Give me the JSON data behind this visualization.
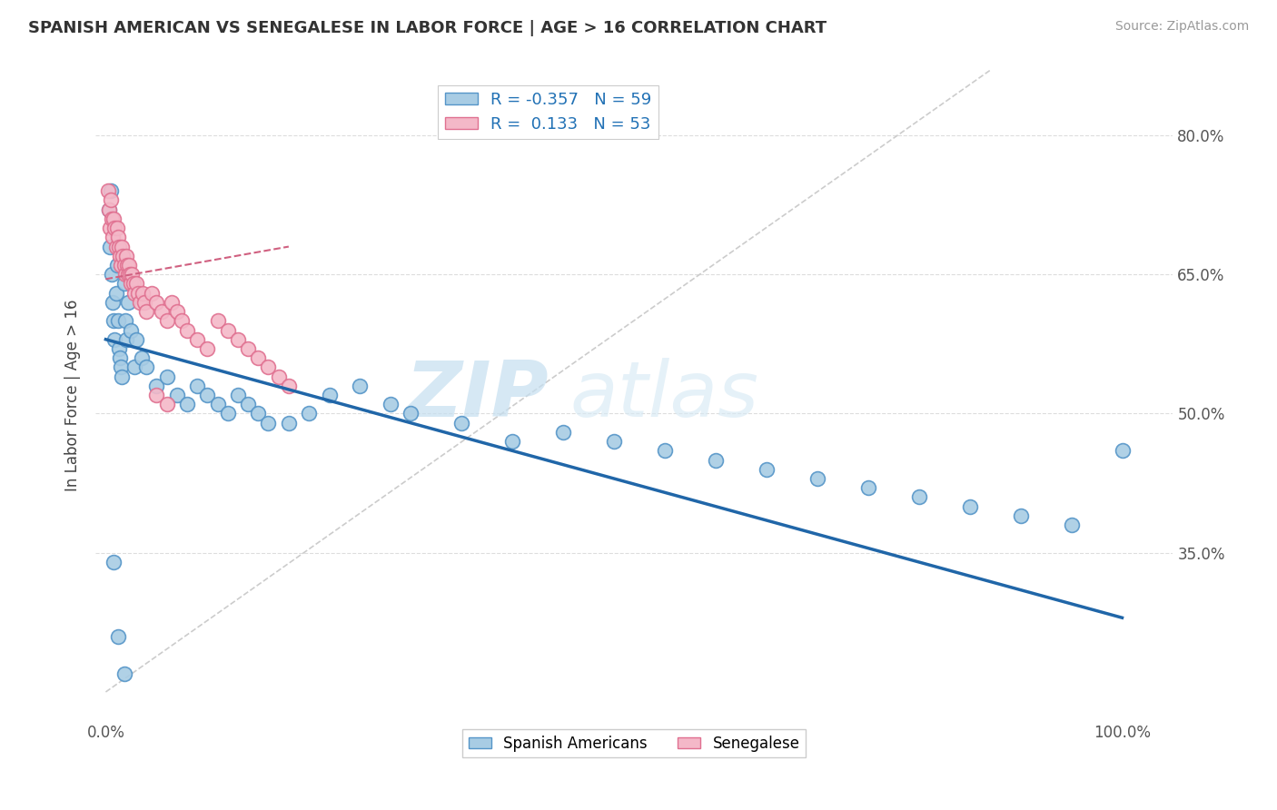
{
  "title": "SPANISH AMERICAN VS SENEGALESE IN LABOR FORCE | AGE > 16 CORRELATION CHART",
  "source": "Source: ZipAtlas.com",
  "ylabel": "In Labor Force | Age > 16",
  "xlim": [
    -0.01,
    1.05
  ],
  "ylim": [
    0.17,
    0.87
  ],
  "legend_r1": "R = -0.357",
  "legend_n1": "N = 59",
  "legend_r2": "R =  0.133",
  "legend_n2": "N = 53",
  "blue_color": "#a8cce4",
  "pink_color": "#f4b8c8",
  "blue_edge_color": "#5595c8",
  "pink_edge_color": "#e07090",
  "blue_line_color": "#2066a8",
  "pink_line_color": "#d06080",
  "ref_line_color": "#cccccc",
  "background_color": "#ffffff",
  "grid_color": "#dddddd",
  "watermark_zip": "ZIP",
  "watermark_atlas": "atlas",
  "blue_scatter_x": [
    0.003,
    0.004,
    0.005,
    0.006,
    0.007,
    0.008,
    0.009,
    0.01,
    0.011,
    0.012,
    0.013,
    0.014,
    0.015,
    0.016,
    0.017,
    0.018,
    0.019,
    0.02,
    0.022,
    0.025,
    0.028,
    0.03,
    0.035,
    0.04,
    0.05,
    0.06,
    0.07,
    0.08,
    0.09,
    0.1,
    0.11,
    0.12,
    0.13,
    0.14,
    0.15,
    0.16,
    0.18,
    0.2,
    0.22,
    0.25,
    0.28,
    0.3,
    0.35,
    0.4,
    0.45,
    0.5,
    0.55,
    0.6,
    0.65,
    0.7,
    0.75,
    0.8,
    0.85,
    0.9,
    0.95,
    1.0,
    0.008,
    0.012,
    0.018
  ],
  "blue_scatter_y": [
    0.72,
    0.68,
    0.74,
    0.65,
    0.62,
    0.6,
    0.58,
    0.63,
    0.66,
    0.6,
    0.57,
    0.56,
    0.55,
    0.54,
    0.67,
    0.64,
    0.6,
    0.58,
    0.62,
    0.59,
    0.55,
    0.58,
    0.56,
    0.55,
    0.53,
    0.54,
    0.52,
    0.51,
    0.53,
    0.52,
    0.51,
    0.5,
    0.52,
    0.51,
    0.5,
    0.49,
    0.49,
    0.5,
    0.52,
    0.53,
    0.51,
    0.5,
    0.49,
    0.47,
    0.48,
    0.47,
    0.46,
    0.45,
    0.44,
    0.43,
    0.42,
    0.41,
    0.4,
    0.39,
    0.38,
    0.46,
    0.34,
    0.26,
    0.22
  ],
  "pink_scatter_x": [
    0.002,
    0.003,
    0.004,
    0.005,
    0.006,
    0.007,
    0.008,
    0.009,
    0.01,
    0.011,
    0.012,
    0.013,
    0.014,
    0.015,
    0.016,
    0.017,
    0.018,
    0.019,
    0.02,
    0.021,
    0.022,
    0.023,
    0.024,
    0.025,
    0.026,
    0.027,
    0.028,
    0.03,
    0.032,
    0.034,
    0.036,
    0.038,
    0.04,
    0.045,
    0.05,
    0.055,
    0.06,
    0.065,
    0.07,
    0.075,
    0.08,
    0.09,
    0.1,
    0.11,
    0.12,
    0.13,
    0.14,
    0.15,
    0.16,
    0.17,
    0.18,
    0.05,
    0.06
  ],
  "pink_scatter_y": [
    0.74,
    0.72,
    0.7,
    0.73,
    0.71,
    0.69,
    0.71,
    0.7,
    0.68,
    0.7,
    0.69,
    0.68,
    0.67,
    0.66,
    0.68,
    0.67,
    0.66,
    0.65,
    0.67,
    0.66,
    0.65,
    0.66,
    0.65,
    0.64,
    0.65,
    0.64,
    0.63,
    0.64,
    0.63,
    0.62,
    0.63,
    0.62,
    0.61,
    0.63,
    0.62,
    0.61,
    0.6,
    0.62,
    0.61,
    0.6,
    0.59,
    0.58,
    0.57,
    0.6,
    0.59,
    0.58,
    0.57,
    0.56,
    0.55,
    0.54,
    0.53,
    0.52,
    0.51
  ],
  "blue_line_x": [
    0.0,
    1.0
  ],
  "blue_line_y": [
    0.58,
    0.28
  ],
  "pink_line_x": [
    0.0,
    0.18
  ],
  "pink_line_y": [
    0.645,
    0.68
  ],
  "ref_line_x": [
    0.0,
    0.87
  ],
  "ref_line_y": [
    0.2,
    0.87
  ]
}
